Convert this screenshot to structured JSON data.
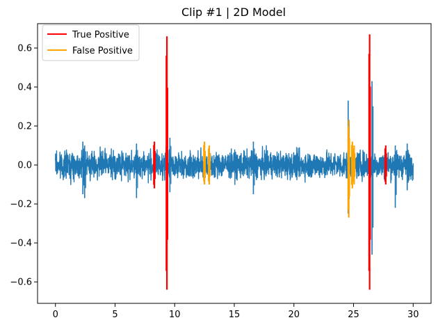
{
  "chart_data": {
    "type": "line",
    "title": "Clip #1 | 2D Model",
    "xlabel": "",
    "ylabel": "",
    "xlim": [
      -1.5,
      31.5
    ],
    "ylim": [
      -0.71,
      0.725
    ],
    "xticks": [
      0,
      5,
      10,
      15,
      20,
      25,
      30
    ],
    "yticks": [
      -0.6,
      -0.4,
      -0.2,
      0.0,
      0.2,
      0.4,
      0.6
    ],
    "ytick_labels": [
      "−0.6",
      "−0.4",
      "−0.2",
      "0.0",
      "0.2",
      "0.4",
      "0.6"
    ],
    "grid": false,
    "legend": {
      "placement": "top-left",
      "entries": [
        {
          "name": "True Positive",
          "color": "#ff0000"
        },
        {
          "name": "False Positive",
          "color": "#ffa500"
        }
      ]
    },
    "series": [
      {
        "role": "signal",
        "color": "#1f77b4",
        "x_range": [
          0,
          30
        ],
        "typical_amplitude": 0.1,
        "noise_spikes": [
          {
            "x": 2.3,
            "min": -0.15,
            "max": 0.12
          },
          {
            "x": 2.45,
            "min": -0.17,
            "max": 0.1
          },
          {
            "x": 6.8,
            "min": -0.17,
            "max": 0.11
          },
          {
            "x": 9.6,
            "min": -0.14,
            "max": 0.14
          },
          {
            "x": 16.6,
            "min": -0.15,
            "max": 0.12
          },
          {
            "x": 24.55,
            "min": -0.25,
            "max": 0.33
          },
          {
            "x": 26.55,
            "min": -0.46,
            "max": 0.43
          },
          {
            "x": 28.5,
            "min": -0.22,
            "max": 0.1
          },
          {
            "x": 29.5,
            "min": -0.13,
            "max": 0.11
          }
        ]
      },
      {
        "name": "True Positive",
        "color": "#ff0000",
        "segments": [
          {
            "x": 8.3,
            "min": -0.12,
            "max": 0.12
          },
          {
            "x": 9.35,
            "min": -0.64,
            "max": 0.66
          },
          {
            "x": 26.35,
            "min": -0.64,
            "max": 0.67
          },
          {
            "x": 27.7,
            "min": -0.1,
            "max": 0.1
          }
        ]
      },
      {
        "name": "False Positive",
        "color": "#ffa500",
        "segments": [
          {
            "x": 12.5,
            "min": -0.1,
            "max": 0.12
          },
          {
            "x": 12.9,
            "min": -0.1,
            "max": 0.1
          },
          {
            "x": 24.6,
            "min": -0.27,
            "max": 0.23
          },
          {
            "x": 24.9,
            "min": -0.12,
            "max": 0.12
          },
          {
            "x": 25.05,
            "min": -0.1,
            "max": 0.1
          }
        ]
      }
    ]
  }
}
